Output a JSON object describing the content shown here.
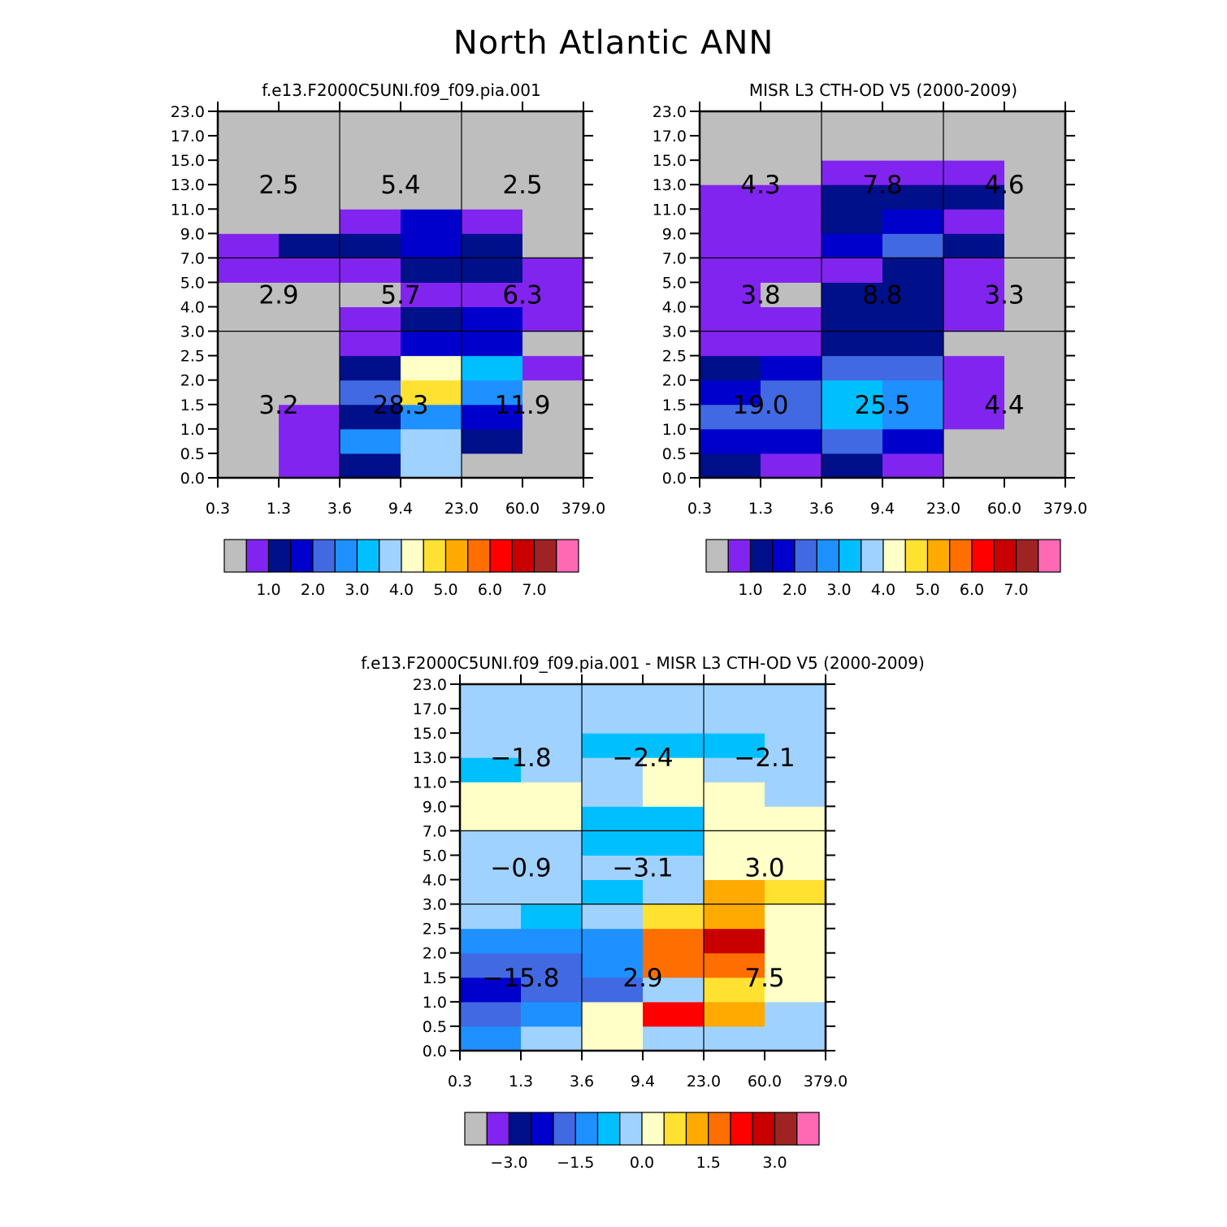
{
  "figure_title": "North Atlantic ANN",
  "colors": {
    "rainbow": [
      "#bebebe",
      "#8224f0",
      "#000f8a",
      "#0000cd",
      "#4169e1",
      "#1e90ff",
      "#00bfff",
      "#a0d2ff",
      "#ffffc8",
      "#ffe132",
      "#ffaa00",
      "#ff6e00",
      "#ff0000",
      "#c80000",
      "#a02323",
      "#ff69b4"
    ],
    "frame": "#000000"
  },
  "chart_data": [
    {
      "type": "heatmap",
      "title": "f.e13.F2000C5UNI.f09_f09.pia.001",
      "x_ticks": [
        "0.3",
        "1.3",
        "3.6",
        "9.4",
        "23.0",
        "60.0",
        "379.0"
      ],
      "y_ticks": [
        "0.0",
        "0.5",
        "1.0",
        "1.5",
        "2.0",
        "2.5",
        "3.0",
        "4.0",
        "5.0",
        "7.0",
        "9.0",
        "11.0",
        "13.0",
        "15.0",
        "17.0",
        "23.0"
      ],
      "cells": [
        [
          0,
          1,
          2,
          7,
          0,
          0
        ],
        [
          0,
          1,
          5,
          7,
          2,
          0
        ],
        [
          0,
          1,
          2,
          5,
          3,
          0
        ],
        [
          0,
          0,
          4,
          9,
          5,
          0
        ],
        [
          0,
          0,
          2,
          8,
          6,
          1
        ],
        [
          0,
          0,
          1,
          3,
          3,
          0
        ],
        [
          0,
          0,
          1,
          2,
          3,
          1
        ],
        [
          0,
          0,
          0,
          1,
          1,
          1
        ],
        [
          1,
          1,
          1,
          2,
          2,
          1
        ],
        [
          1,
          2,
          2,
          3,
          2,
          0
        ],
        [
          0,
          0,
          1,
          3,
          1,
          0
        ],
        [
          0,
          0,
          0,
          0,
          0,
          0
        ],
        [
          0,
          0,
          0,
          0,
          0,
          0
        ],
        [
          0,
          0,
          0,
          0,
          0,
          0
        ],
        [
          0,
          0,
          0,
          0,
          0,
          0
        ]
      ],
      "region_values": [
        [
          "3.2",
          "28.3",
          "11.9"
        ],
        [
          "2.9",
          "5.7",
          "6.3"
        ],
        [
          "2.5",
          "5.4",
          "2.5"
        ]
      ],
      "colorbar_labels": [
        "1.0",
        "2.0",
        "3.0",
        "4.0",
        "5.0",
        "6.0",
        "7.0"
      ]
    },
    {
      "type": "heatmap",
      "title": "MISR L3 CTH-OD V5 (2000-2009)",
      "x_ticks": [
        "0.3",
        "1.3",
        "3.6",
        "9.4",
        "23.0",
        "60.0",
        "379.0"
      ],
      "y_ticks": [
        "0.0",
        "0.5",
        "1.0",
        "1.5",
        "2.0",
        "2.5",
        "3.0",
        "4.0",
        "5.0",
        "7.0",
        "9.0",
        "11.0",
        "13.0",
        "15.0",
        "17.0",
        "23.0"
      ],
      "cells": [
        [
          2,
          1,
          2,
          1,
          0,
          0
        ],
        [
          3,
          3,
          4,
          3,
          0,
          0
        ],
        [
          4,
          4,
          6,
          5,
          1,
          0
        ],
        [
          3,
          4,
          6,
          5,
          1,
          0
        ],
        [
          2,
          3,
          4,
          4,
          1,
          0
        ],
        [
          1,
          1,
          2,
          2,
          0,
          0
        ],
        [
          1,
          1,
          2,
          2,
          1,
          0
        ],
        [
          1,
          0,
          2,
          2,
          1,
          0
        ],
        [
          1,
          1,
          1,
          2,
          1,
          0
        ],
        [
          1,
          1,
          3,
          4,
          2,
          0
        ],
        [
          1,
          1,
          2,
          3,
          1,
          0
        ],
        [
          1,
          1,
          2,
          2,
          2,
          0
        ],
        [
          0,
          0,
          1,
          1,
          1,
          0
        ],
        [
          0,
          0,
          0,
          0,
          0,
          0
        ],
        [
          0,
          0,
          0,
          0,
          0,
          0
        ]
      ],
      "region_values": [
        [
          "19.0",
          "25.5",
          "4.4"
        ],
        [
          "3.8",
          "8.8",
          "3.3"
        ],
        [
          "4.3",
          "7.8",
          "4.6"
        ]
      ],
      "colorbar_labels": [
        "1.0",
        "2.0",
        "3.0",
        "4.0",
        "5.0",
        "6.0",
        "7.0"
      ]
    },
    {
      "type": "heatmap",
      "title": "f.e13.F2000C5UNI.f09_f09.pia.001 - MISR L3 CTH-OD V5 (2000-2009)",
      "x_ticks": [
        "0.3",
        "1.3",
        "3.6",
        "9.4",
        "23.0",
        "60.0",
        "379.0"
      ],
      "y_ticks": [
        "0.0",
        "0.5",
        "1.0",
        "1.5",
        "2.0",
        "2.5",
        "3.0",
        "4.0",
        "5.0",
        "7.0",
        "9.0",
        "11.0",
        "13.0",
        "15.0",
        "17.0",
        "23.0"
      ],
      "cells": [
        [
          5,
          7,
          8,
          7,
          7,
          7
        ],
        [
          4,
          5,
          8,
          12,
          10,
          7
        ],
        [
          3,
          4,
          4,
          7,
          9,
          8
        ],
        [
          4,
          4,
          5,
          11,
          11,
          8
        ],
        [
          5,
          5,
          5,
          11,
          13,
          8
        ],
        [
          7,
          6,
          7,
          9,
          10,
          8
        ],
        [
          7,
          7,
          6,
          7,
          10,
          9
        ],
        [
          7,
          7,
          7,
          7,
          8,
          8
        ],
        [
          7,
          7,
          6,
          6,
          8,
          8
        ],
        [
          8,
          8,
          6,
          6,
          8,
          8
        ],
        [
          8,
          8,
          7,
          8,
          8,
          7
        ],
        [
          6,
          7,
          7,
          8,
          7,
          7
        ],
        [
          7,
          7,
          6,
          6,
          6,
          7
        ],
        [
          7,
          7,
          7,
          7,
          7,
          7
        ],
        [
          7,
          7,
          7,
          7,
          7,
          7
        ]
      ],
      "region_values": [
        [
          "−15.8",
          "2.9",
          "7.5"
        ],
        [
          "−0.9",
          "−3.1",
          "3.0"
        ],
        [
          "−1.8",
          "−2.4",
          "−2.1"
        ]
      ],
      "colorbar_labels": [
        "−3.0",
        "−1.5",
        "0.0",
        "1.5",
        "3.0"
      ]
    }
  ]
}
